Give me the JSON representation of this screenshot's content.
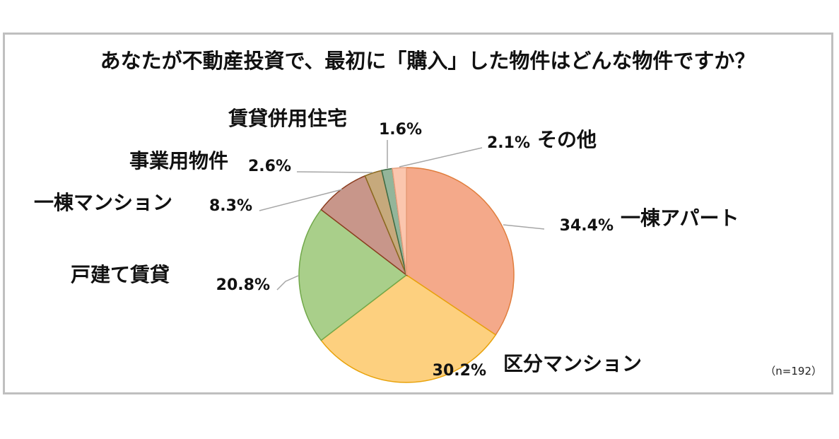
{
  "chart_data": {
    "type": "pie",
    "title": "あなたが不動産投資で、最初に「購入」した物件はどんな物件ですか？",
    "note": "（n=192）",
    "slices": [
      {
        "category": "一棟アパート",
        "value": 34.4,
        "label": "34.4%",
        "color": "#f4a98a",
        "stroke": "#e07d3c"
      },
      {
        "category": "区分マンション",
        "value": 30.2,
        "label": "30.2%",
        "color": "#fdd07f",
        "stroke": "#e8a20a"
      },
      {
        "category": "戸建て賃貸",
        "value": 20.8,
        "label": "20.8%",
        "color": "#a9cf8a",
        "stroke": "#71a84a"
      },
      {
        "category": "一棟マンション",
        "value": 8.3,
        "label": "8.3%",
        "color": "#c8968a",
        "stroke": "#8b3d1f"
      },
      {
        "category": "事業用物件",
        "value": 2.6,
        "label": "2.6%",
        "color": "#c6a97c",
        "stroke": "#8b6a1f"
      },
      {
        "category": "賃貸併用住宅",
        "value": 1.6,
        "label": "1.6%",
        "color": "#93b59a",
        "stroke": "#3d6b45"
      },
      {
        "category": "その他",
        "value": 2.1,
        "label": "2.1%",
        "color": "#fbc6ae",
        "stroke": "#e8a07f"
      }
    ]
  }
}
